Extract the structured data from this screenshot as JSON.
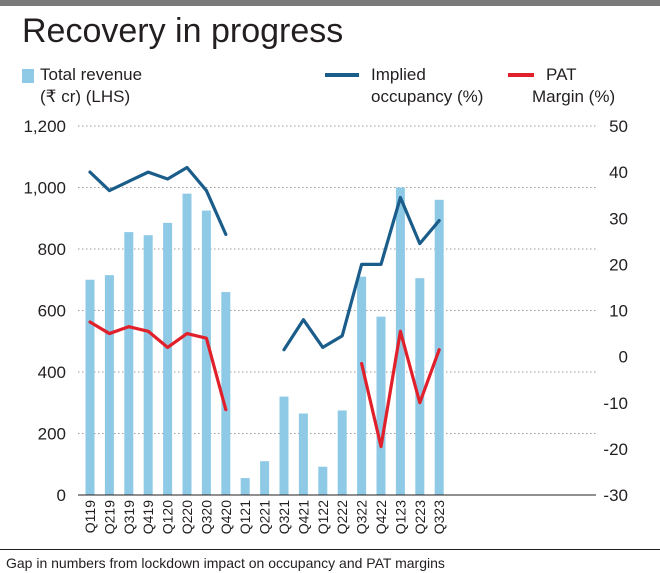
{
  "title": "Recovery in progress",
  "legend": {
    "revenue": [
      "Total revenue",
      "(₹ cr) (LHS)"
    ],
    "occupancy": [
      "Implied",
      "occupancy (%)"
    ],
    "pat": [
      "PAT",
      "Margin (%)"
    ]
  },
  "caption": "Gap in numbers from lockdown impact on occupancy and PAT margins",
  "colors": {
    "bar": "#8ecae6",
    "occupancy": "#1a5c8a",
    "pat": "#e0202a",
    "grid": "#9a9a9a",
    "text": "#231f20"
  },
  "chart_data": {
    "type": "bar",
    "title": "Recovery in progress",
    "categories": [
      "Q119",
      "Q219",
      "Q319",
      "Q419",
      "Q120",
      "Q220",
      "Q320",
      "Q420",
      "Q121",
      "Q221",
      "Q321",
      "Q421",
      "Q122",
      "Q222",
      "Q322",
      "Q422",
      "Q123",
      "Q223",
      "Q323"
    ],
    "left_axis": {
      "ylim": [
        0,
        1200
      ],
      "ticks": [
        0,
        200,
        400,
        600,
        800,
        "1,000",
        "1,200"
      ],
      "tick_values": [
        0,
        200,
        400,
        600,
        800,
        1000,
        1200
      ]
    },
    "right_axis": {
      "ylim": [
        -30,
        50
      ],
      "ticks": [
        "-30",
        "-20",
        "-10",
        "0",
        "10",
        "20",
        "30",
        "40",
        "50"
      ],
      "tick_values": [
        -30,
        -20,
        -10,
        0,
        10,
        20,
        30,
        40,
        50
      ]
    },
    "series": [
      {
        "name": "Total revenue (₹ cr) (LHS)",
        "kind": "bar",
        "axis": "left",
        "values": [
          700,
          715,
          855,
          845,
          885,
          980,
          925,
          660,
          55,
          110,
          320,
          265,
          92,
          275,
          710,
          580,
          1000,
          705,
          960
        ]
      },
      {
        "name": "Implied occupancy (%)",
        "kind": "line",
        "axis": "right",
        "values": [
          40,
          36,
          38,
          40,
          38.5,
          41,
          36,
          26.5,
          null,
          null,
          1.5,
          8,
          2,
          4.5,
          20,
          20,
          34.5,
          24.5,
          29.5
        ]
      },
      {
        "name": "PAT Margin (%)",
        "kind": "line",
        "axis": "right",
        "values": [
          7.5,
          5,
          6.5,
          5.5,
          2,
          5,
          4,
          -11.5,
          null,
          null,
          null,
          null,
          null,
          null,
          -1.5,
          -19.5,
          5.5,
          -10,
          1.5
        ]
      }
    ],
    "grid": true,
    "legend_position": "top"
  }
}
